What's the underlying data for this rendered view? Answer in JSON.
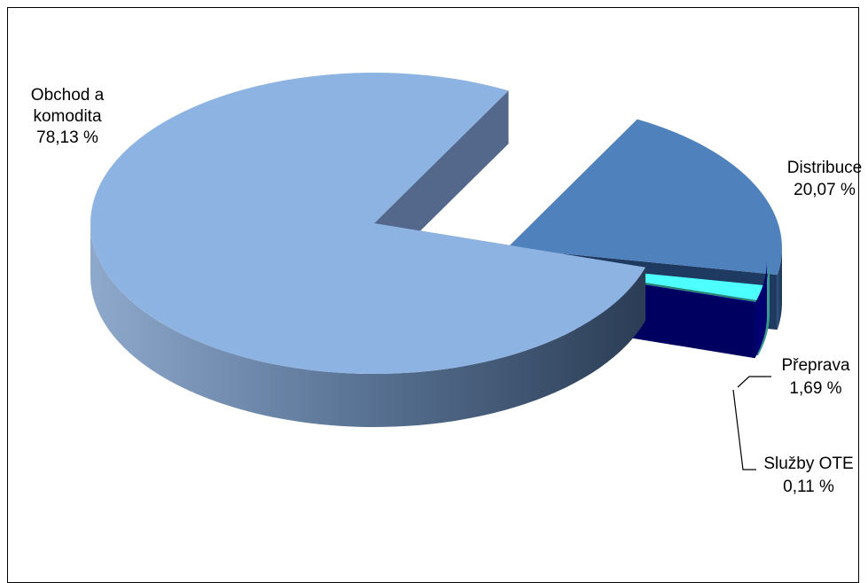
{
  "chart_data": {
    "type": "pie",
    "three_d": true,
    "exploded": true,
    "legend": "none",
    "slices": [
      {
        "label": "Obchod a komodita",
        "value_text": "78,13 %",
        "value": 78.13,
        "color": "#8db3e2",
        "label_lines": [
          "Obchod a",
          "komodita",
          "78,13 %"
        ]
      },
      {
        "label": "Distribuce",
        "value_text": "20,07 %",
        "value": 20.07,
        "color": "#4f81bd",
        "label_lines": [
          "Distribuce",
          "20,07 %"
        ]
      },
      {
        "label": "Přeprava",
        "value_text": "1,69 %",
        "value": 1.69,
        "color": "#4dffff",
        "label_lines": [
          "Přeprava",
          "1,69 %"
        ]
      },
      {
        "label": "Služby OTE",
        "value_text": "0,11 %",
        "value": 0.11,
        "color": "#000080",
        "label_lines": [
          "Služby OTE",
          "0,11 %"
        ]
      }
    ]
  }
}
